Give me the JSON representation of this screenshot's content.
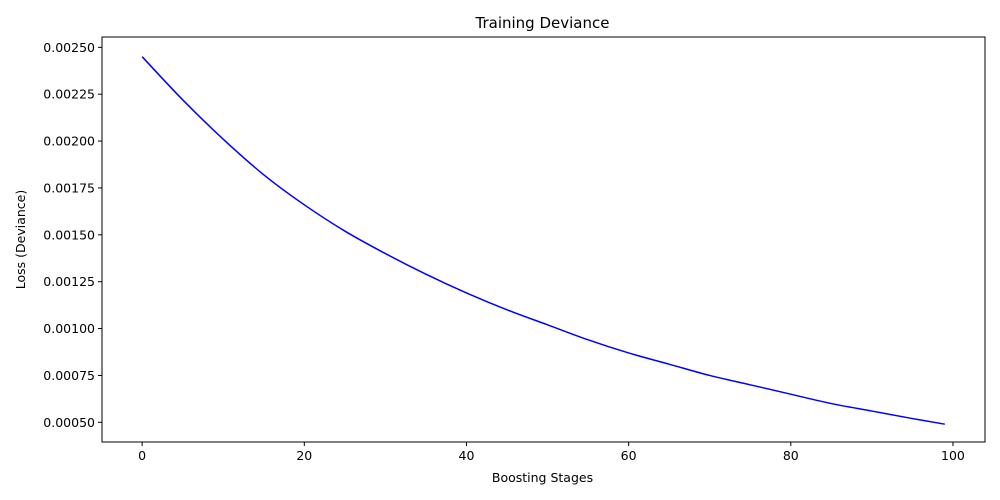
{
  "chart_data": {
    "type": "line",
    "title": "Training Deviance",
    "xlabel": "Boosting Stages",
    "ylabel": "Loss (Deviance)",
    "xlim": [
      -4.95,
      103.95
    ],
    "ylim": [
      0.000395,
      0.002555
    ],
    "x_ticks": [
      0,
      20,
      40,
      60,
      80,
      100
    ],
    "x_tick_labels": [
      "0",
      "20",
      "40",
      "60",
      "80",
      "100"
    ],
    "y_ticks": [
      0.0005,
      0.00075,
      0.001,
      0.00125,
      0.0015,
      0.00175,
      0.002,
      0.00225,
      0.0025
    ],
    "y_tick_labels": [
      "0.00050",
      "0.00075",
      "0.00100",
      "0.00125",
      "0.00150",
      "0.00175",
      "0.00200",
      "0.00225",
      "0.00250"
    ],
    "grid": false,
    "legend": "none",
    "series": [
      {
        "color": "#0000ff",
        "x": [
          0,
          5,
          10,
          15,
          20,
          25,
          30,
          35,
          40,
          45,
          50,
          55,
          60,
          65,
          70,
          75,
          80,
          85,
          90,
          95,
          99
        ],
        "y": [
          0.00245,
          0.00222,
          0.00201,
          0.00182,
          0.00166,
          0.00152,
          0.0014,
          0.00129,
          0.00119,
          0.0011,
          0.00102,
          0.00094,
          0.00087,
          0.00081,
          0.00075,
          0.0007,
          0.00065,
          0.0006,
          0.00056,
          0.00052,
          0.00049
        ]
      }
    ]
  }
}
